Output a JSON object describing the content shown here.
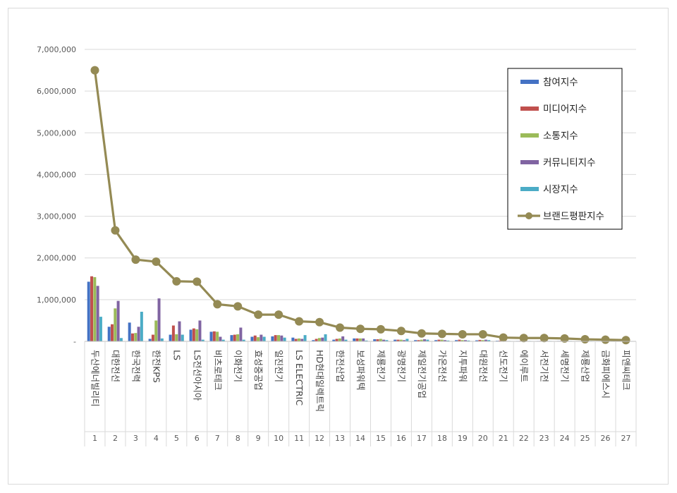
{
  "chart_data": {
    "type": "bar",
    "title": "",
    "xlabel": "",
    "ylabel": "",
    "ylim": [
      0,
      7000000
    ],
    "yticks": [
      0,
      1000000,
      2000000,
      3000000,
      4000000,
      5000000,
      6000000,
      7000000
    ],
    "ytick_labels": [
      "-",
      "1,000,000",
      "2,000,000",
      "3,000,000",
      "4,000,000",
      "5,000,000",
      "6,000,000",
      "7,000,000"
    ],
    "grid": true,
    "legend_position": "top-right",
    "categories": [
      "두산에너빌리티",
      "대한전선",
      "한국전력",
      "한전KPS",
      "LS",
      "LS전선아시아",
      "비츠로테크",
      "이화전기",
      "효성중공업",
      "일진전기",
      "LS ELECTRIC",
      "HD현대일렉트릭",
      "한전산업",
      "보성파워텍",
      "제룡전기",
      "광명전기",
      "제일전기공업",
      "가온전선",
      "지투파워",
      "대원전선",
      "선도전기",
      "에이루트",
      "서전기전",
      "세명전기",
      "제룡산업",
      "금화피에스시",
      "피앤씨테크"
    ],
    "ranks": [
      "1",
      "2",
      "3",
      "4",
      "5",
      "6",
      "7",
      "8",
      "9",
      "10",
      "11",
      "12",
      "13",
      "14",
      "15",
      "16",
      "17",
      "18",
      "19",
      "20",
      "21",
      "22",
      "23",
      "24",
      "25",
      "26",
      "27"
    ],
    "series": [
      {
        "name": "참여지수",
        "kind": "bar",
        "color": "#4472c4",
        "values": [
          1430000,
          350000,
          450000,
          60000,
          160000,
          280000,
          230000,
          150000,
          110000,
          120000,
          90000,
          30000,
          40000,
          70000,
          50000,
          40000,
          30000,
          30000,
          30000,
          25000,
          15000,
          10000,
          10000,
          10000,
          8000,
          8000,
          5000
        ]
      },
      {
        "name": "미디어지수",
        "kind": "bar",
        "color": "#c0504d",
        "values": [
          1560000,
          410000,
          190000,
          160000,
          380000,
          310000,
          240000,
          160000,
          140000,
          150000,
          60000,
          60000,
          60000,
          70000,
          50000,
          40000,
          30000,
          40000,
          40000,
          35000,
          20000,
          12000,
          12000,
          12000,
          10000,
          10000,
          5000
        ]
      },
      {
        "name": "소통지수",
        "kind": "bar",
        "color": "#9bbb59",
        "values": [
          1540000,
          790000,
          200000,
          500000,
          170000,
          290000,
          230000,
          170000,
          100000,
          150000,
          70000,
          80000,
          70000,
          70000,
          60000,
          40000,
          40000,
          40000,
          30000,
          30000,
          20000,
          12000,
          12000,
          12000,
          10000,
          10000,
          5000
        ]
      },
      {
        "name": "커뮤니티지수",
        "kind": "bar",
        "color": "#8064a2",
        "values": [
          1330000,
          970000,
          350000,
          1030000,
          480000,
          500000,
          110000,
          330000,
          160000,
          140000,
          60000,
          90000,
          120000,
          70000,
          40000,
          30000,
          50000,
          30000,
          30000,
          40000,
          10000,
          10000,
          10000,
          10000,
          8000,
          8000,
          5000
        ]
      },
      {
        "name": "시장지수",
        "kind": "bar",
        "color": "#4bacc6",
        "values": [
          590000,
          80000,
          710000,
          70000,
          160000,
          40000,
          40000,
          40000,
          110000,
          90000,
          150000,
          170000,
          40000,
          20000,
          30000,
          60000,
          40000,
          20000,
          20000,
          30000,
          10000,
          10000,
          10000,
          10000,
          10000,
          10000,
          5000
        ]
      },
      {
        "name": "브랜드평판지수",
        "kind": "line",
        "color": "#948a54",
        "values": [
          6500000,
          2660000,
          1960000,
          1910000,
          1440000,
          1430000,
          890000,
          840000,
          640000,
          640000,
          480000,
          460000,
          330000,
          300000,
          290000,
          250000,
          190000,
          180000,
          170000,
          170000,
          90000,
          80000,
          80000,
          70000,
          50000,
          40000,
          30000
        ]
      }
    ]
  }
}
